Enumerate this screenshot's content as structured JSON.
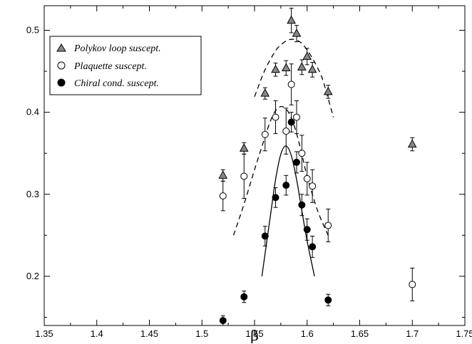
{
  "chart_data": {
    "type": "scatter",
    "title": "",
    "xlabel": "β",
    "ylabel": "",
    "xlim": [
      1.35,
      1.75
    ],
    "ylim": [
      0.14,
      0.53
    ],
    "x_ticks": [
      "1.35",
      "1.4",
      "1.45",
      "1.5",
      "1.55",
      "1.6",
      "1.65",
      "1.7",
      "1.75"
    ],
    "y_ticks": [
      "0.2",
      "0.3",
      "0.4",
      "0.5"
    ],
    "grid": false,
    "legend_position": "top-left",
    "series": [
      {
        "name": "Polykov loop suscept.",
        "marker": "triangle",
        "color": "#888888",
        "points": [
          {
            "x": 1.52,
            "y": 0.323,
            "err": 0.007
          },
          {
            "x": 1.54,
            "y": 0.356,
            "err": 0.007
          },
          {
            "x": 1.56,
            "y": 0.423,
            "err": 0.007
          },
          {
            "x": 1.57,
            "y": 0.452,
            "err": 0.008
          },
          {
            "x": 1.58,
            "y": 0.454,
            "err": 0.009
          },
          {
            "x": 1.585,
            "y": 0.512,
            "err": 0.015
          },
          {
            "x": 1.59,
            "y": 0.496,
            "err": 0.01
          },
          {
            "x": 1.595,
            "y": 0.455,
            "err": 0.009
          },
          {
            "x": 1.6,
            "y": 0.468,
            "err": 0.01
          },
          {
            "x": 1.605,
            "y": 0.452,
            "err": 0.009
          },
          {
            "x": 1.62,
            "y": 0.425,
            "err": 0.008
          },
          {
            "x": 1.7,
            "y": 0.361,
            "err": 0.008
          }
        ]
      },
      {
        "name": "Plaquette suscept.",
        "marker": "open-circle",
        "color": "#000000",
        "points": [
          {
            "x": 1.52,
            "y": 0.298,
            "err": 0.018
          },
          {
            "x": 1.54,
            "y": 0.322,
            "err": 0.027
          },
          {
            "x": 1.56,
            "y": 0.373,
            "err": 0.02
          },
          {
            "x": 1.57,
            "y": 0.394,
            "err": 0.02
          },
          {
            "x": 1.58,
            "y": 0.377,
            "err": 0.028
          },
          {
            "x": 1.585,
            "y": 0.434,
            "err": 0.025
          },
          {
            "x": 1.59,
            "y": 0.394,
            "err": 0.02
          },
          {
            "x": 1.595,
            "y": 0.35,
            "err": 0.022
          },
          {
            "x": 1.6,
            "y": 0.319,
            "err": 0.02
          },
          {
            "x": 1.605,
            "y": 0.31,
            "err": 0.02
          },
          {
            "x": 1.62,
            "y": 0.262,
            "err": 0.02
          },
          {
            "x": 1.7,
            "y": 0.19,
            "err": 0.02
          }
        ]
      },
      {
        "name": "Chiral cond. suscept.",
        "marker": "filled-circle",
        "color": "#000000",
        "points": [
          {
            "x": 1.52,
            "y": 0.146,
            "err": 0.006
          },
          {
            "x": 1.54,
            "y": 0.175,
            "err": 0.007
          },
          {
            "x": 1.56,
            "y": 0.249,
            "err": 0.012
          },
          {
            "x": 1.57,
            "y": 0.296,
            "err": 0.012
          },
          {
            "x": 1.58,
            "y": 0.311,
            "err": 0.012
          },
          {
            "x": 1.585,
            "y": 0.388,
            "err": 0.012
          },
          {
            "x": 1.59,
            "y": 0.339,
            "err": 0.013
          },
          {
            "x": 1.595,
            "y": 0.287,
            "err": 0.013
          },
          {
            "x": 1.6,
            "y": 0.257,
            "err": 0.013
          },
          {
            "x": 1.605,
            "y": 0.236,
            "err": 0.013
          },
          {
            "x": 1.62,
            "y": 0.171,
            "err": 0.007
          }
        ]
      }
    ],
    "fits": [
      {
        "for": "Polykov loop suscept.",
        "style": "dashed",
        "x": [
          1.55,
          1.56,
          1.57,
          1.575,
          1.58,
          1.585,
          1.59,
          1.595,
          1.6,
          1.605,
          1.61,
          1.615,
          1.625
        ],
        "y": [
          0.419,
          0.452,
          0.475,
          0.482,
          0.487,
          0.489,
          0.488,
          0.484,
          0.476,
          0.466,
          0.454,
          0.439,
          0.394
        ]
      },
      {
        "for": "Plaquette suscept.",
        "style": "dashed",
        "x": [
          1.53,
          1.54,
          1.55,
          1.56,
          1.565,
          1.57,
          1.575,
          1.58,
          1.585,
          1.59,
          1.595,
          1.6,
          1.61,
          1.62
        ],
        "y": [
          0.25,
          0.288,
          0.33,
          0.37,
          0.389,
          0.402,
          0.407,
          0.404,
          0.393,
          0.374,
          0.349,
          0.322,
          0.28,
          0.25
        ]
      },
      {
        "for": "Chiral cond. suscept.",
        "style": "solid",
        "x": [
          1.557,
          1.565,
          1.57,
          1.575,
          1.58,
          1.585,
          1.59,
          1.595,
          1.6,
          1.607
        ],
        "y": [
          0.2,
          0.273,
          0.318,
          0.349,
          0.359,
          0.347,
          0.318,
          0.28,
          0.243,
          0.2
        ]
      }
    ]
  }
}
